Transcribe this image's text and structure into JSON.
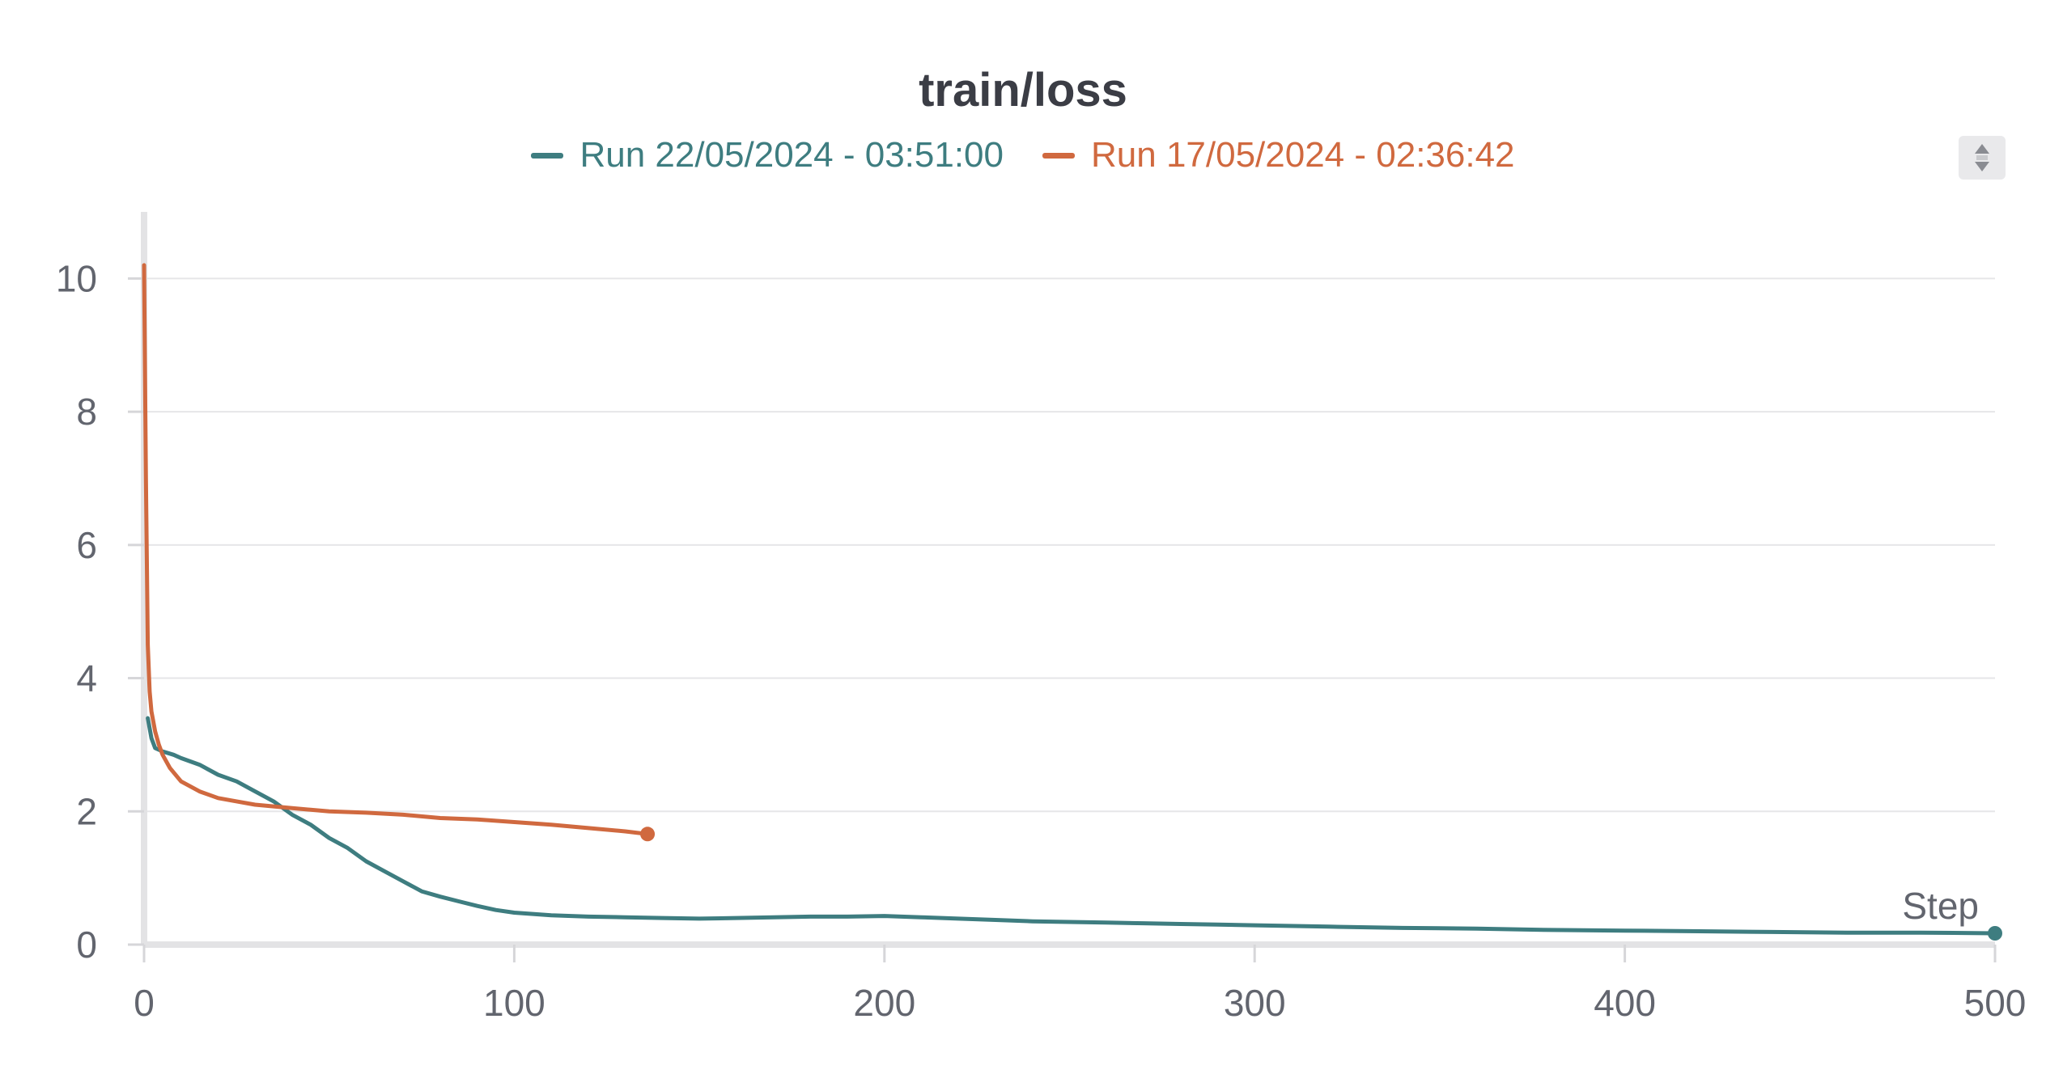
{
  "chart_data": {
    "type": "line",
    "title": "train/loss",
    "xlabel": "Step",
    "ylabel": "",
    "xlim": [
      0,
      500
    ],
    "ylim": [
      0,
      11
    ],
    "x_ticks": [
      0,
      100,
      200,
      300,
      400,
      500
    ],
    "y_ticks": [
      0,
      2,
      4,
      6,
      8,
      10
    ],
    "grid": "horizontal",
    "legend_position": "top-center",
    "series": [
      {
        "name": "Run 22/05/2024 - 03:51:00",
        "color": "#3e7d80",
        "x": [
          1,
          2,
          3,
          5,
          8,
          10,
          15,
          20,
          25,
          30,
          35,
          40,
          45,
          50,
          55,
          60,
          65,
          70,
          75,
          80,
          85,
          90,
          95,
          100,
          110,
          120,
          130,
          140,
          150,
          160,
          170,
          180,
          190,
          200,
          210,
          220,
          230,
          240,
          250,
          260,
          270,
          280,
          290,
          300,
          320,
          340,
          360,
          380,
          400,
          420,
          440,
          460,
          480,
          500
        ],
        "y": [
          3.4,
          3.1,
          2.95,
          2.9,
          2.85,
          2.8,
          2.7,
          2.55,
          2.45,
          2.3,
          2.15,
          1.95,
          1.8,
          1.6,
          1.45,
          1.25,
          1.1,
          0.95,
          0.8,
          0.72,
          0.65,
          0.58,
          0.52,
          0.48,
          0.44,
          0.42,
          0.41,
          0.4,
          0.39,
          0.4,
          0.41,
          0.42,
          0.42,
          0.43,
          0.41,
          0.39,
          0.37,
          0.35,
          0.34,
          0.33,
          0.32,
          0.31,
          0.3,
          0.29,
          0.27,
          0.25,
          0.24,
          0.22,
          0.21,
          0.2,
          0.19,
          0.18,
          0.18,
          0.17
        ]
      },
      {
        "name": "Run 17/05/2024 - 02:36:42",
        "color": "#d0693f",
        "x": [
          0,
          0.5,
          1,
          1.5,
          2,
          3,
          4,
          5,
          7,
          10,
          15,
          20,
          25,
          30,
          40,
          50,
          60,
          70,
          80,
          90,
          100,
          110,
          120,
          130,
          136
        ],
        "y": [
          10.2,
          7.0,
          4.5,
          3.8,
          3.5,
          3.2,
          3.0,
          2.85,
          2.65,
          2.45,
          2.3,
          2.2,
          2.15,
          2.1,
          2.05,
          2.0,
          1.98,
          1.95,
          1.9,
          1.88,
          1.84,
          1.8,
          1.75,
          1.7,
          1.66
        ]
      }
    ]
  },
  "ui": {
    "panel_menu_icon": "expand-collapse-icon"
  }
}
